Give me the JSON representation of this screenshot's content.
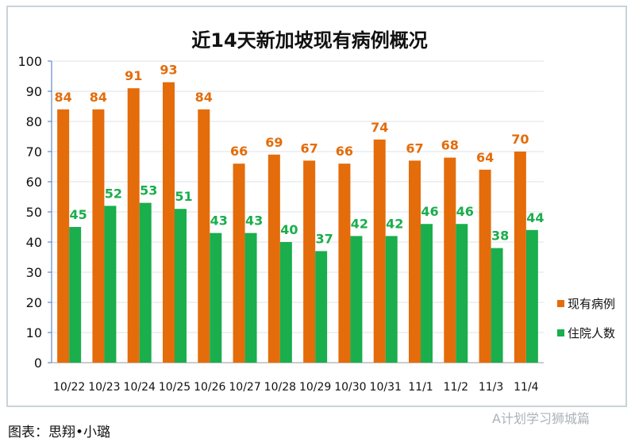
{
  "chart_data": {
    "type": "bar",
    "title": "近14天新加坡现有病例概况",
    "categories": [
      "10/22",
      "10/23",
      "10/24",
      "10/25",
      "10/26",
      "10/27",
      "10/28",
      "10/29",
      "10/30",
      "10/31",
      "11/1",
      "11/2",
      "11/3",
      "11/4"
    ],
    "series": [
      {
        "name": "现有病例",
        "color": "#e46c0a",
        "values": [
          84,
          84,
          91,
          93,
          84,
          66,
          69,
          67,
          66,
          74,
          67,
          68,
          64,
          70
        ]
      },
      {
        "name": "住院人数",
        "color": "#1aae4d",
        "values": [
          45,
          52,
          53,
          51,
          43,
          43,
          40,
          37,
          42,
          42,
          46,
          46,
          38,
          44
        ]
      }
    ],
    "ylim": [
      0,
      100
    ],
    "yticks": [
      0,
      10,
      20,
      30,
      40,
      50,
      60,
      70,
      80,
      90,
      100
    ],
    "grid": true,
    "legend": "right",
    "data_labels": true
  },
  "footer": {
    "credit": "图表：思翔•小璐",
    "watermark": "A计划学习狮城篇"
  }
}
